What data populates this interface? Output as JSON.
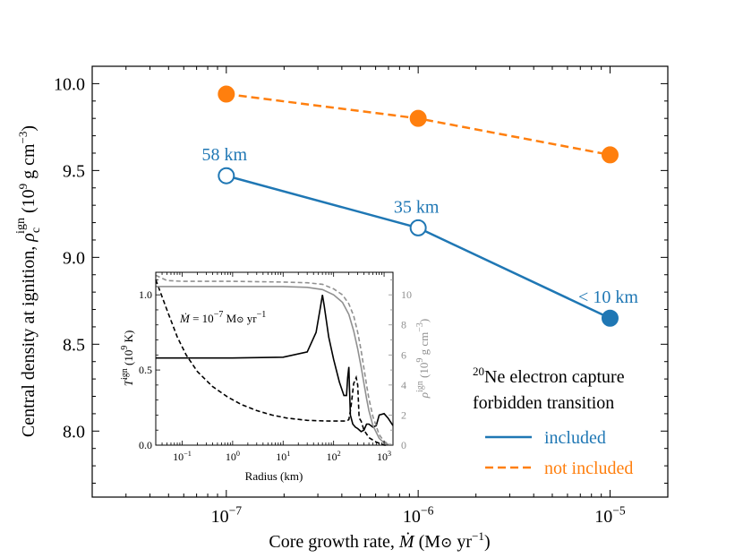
{
  "chart_data": [
    {
      "type": "line",
      "xscale": "log",
      "xlim": [
        2e-08,
        2e-05
      ],
      "ylim": [
        7.62,
        10.1
      ],
      "xticks": [
        {
          "value": 1e-07,
          "base": "10",
          "exp": "-7"
        },
        {
          "value": 1e-06,
          "base": "10",
          "exp": "-6"
        },
        {
          "value": 1e-05,
          "base": "10",
          "exp": "-5"
        }
      ],
      "yticks": [
        {
          "value": 8.0,
          "label": "8.0"
        },
        {
          "value": 8.5,
          "label": "8.5"
        },
        {
          "value": 9.0,
          "label": "9.0"
        },
        {
          "value": 9.5,
          "label": "9.5"
        },
        {
          "value": 10.0,
          "label": "10.0"
        }
      ],
      "xlabel": "Core growth rate, Ṁ (M⊙ yr⁻¹)",
      "ylabel": "Central density at ignition, ρcign (10⁹ g cm⁻³)",
      "series": [
        {
          "name": "included",
          "color": "#1f77b4",
          "dash": "solid",
          "x": [
            1e-07,
            1e-06,
            1e-05
          ],
          "y": [
            9.47,
            9.17,
            8.65
          ],
          "filled": [
            false,
            false,
            true
          ],
          "labels": [
            "58 km",
            "35 km",
            "< 10 km"
          ]
        },
        {
          "name": "not included",
          "color": "#ff7f0e",
          "dash": "dashed",
          "x": [
            1e-07,
            1e-06,
            1e-05
          ],
          "y": [
            9.94,
            9.8,
            9.59
          ],
          "filled": [
            true,
            true,
            true
          ],
          "labels": []
        }
      ],
      "legend": {
        "title_line1": "Ne electron capture",
        "title_sup": "20",
        "title_line2": "forbidden transition",
        "entries": [
          "included",
          "not included"
        ],
        "placement": "lower-right"
      }
    },
    {
      "type": "line",
      "panel": "inset",
      "xscale": "log",
      "xlim": [
        0.03,
        1500
      ],
      "ylim_left": [
        0,
        1.15
      ],
      "ylim_right": [
        0,
        11.5
      ],
      "xticks": [
        {
          "value": 0.1,
          "base": "10",
          "exp": "-1"
        },
        {
          "value": 1,
          "base": "10",
          "exp": "0"
        },
        {
          "value": 10,
          "base": "10",
          "exp": "1"
        },
        {
          "value": 100,
          "base": "10",
          "exp": "2"
        },
        {
          "value": 1000,
          "base": "10",
          "exp": "3"
        }
      ],
      "yticks_left": [
        {
          "value": 0.0,
          "label": "0.0"
        },
        {
          "value": 0.5,
          "label": "0.5"
        },
        {
          "value": 1.0,
          "label": "1.0"
        }
      ],
      "yticks_right": [
        {
          "value": 0,
          "label": "0"
        },
        {
          "value": 2,
          "label": "2"
        },
        {
          "value": 4,
          "label": "4"
        },
        {
          "value": 6,
          "label": "6"
        },
        {
          "value": 8,
          "label": "8"
        },
        {
          "value": 10,
          "label": "10"
        }
      ],
      "xlabel": "Radius (km)",
      "ylabel_left": "Tign (10⁹ K)",
      "ylabel_right": "ρign (10⁹ g cm⁻³)",
      "annotation": "Ṁ = 10⁻⁷ M⊙ yr⁻¹",
      "series": [
        {
          "name": "temperature, forbidden transition included",
          "axis": "left",
          "color": "#000000",
          "dash": "solid",
          "x": [
            0.03,
            1,
            10,
            30,
            45,
            55,
            60,
            65,
            80,
            100,
            130,
            160,
            180,
            190,
            200,
            205,
            215,
            240,
            270,
            300,
            350,
            400,
            450,
            500,
            600,
            700,
            800,
            1000,
            1200,
            1500
          ],
          "y": [
            0.58,
            0.58,
            0.585,
            0.62,
            0.75,
            0.92,
            1.0,
            0.93,
            0.72,
            0.57,
            0.42,
            0.33,
            0.33,
            0.45,
            0.52,
            0.4,
            0.2,
            0.14,
            0.12,
            0.11,
            0.09,
            0.1,
            0.14,
            0.14,
            0.12,
            0.13,
            0.2,
            0.21,
            0.18,
            0.13
          ]
        },
        {
          "name": "temperature, forbidden transition not included",
          "axis": "left",
          "color": "#000000",
          "dash": "dashed",
          "x": [
            0.03,
            0.05,
            0.08,
            0.12,
            0.2,
            0.4,
            0.8,
            1.5,
            3,
            6,
            12,
            30,
            80,
            150,
            180,
            200,
            220,
            250,
            280,
            300,
            320,
            350,
            400,
            500,
            700,
            1000,
            1500
          ],
          "y": [
            1.1,
            0.9,
            0.72,
            0.6,
            0.49,
            0.39,
            0.32,
            0.27,
            0.23,
            0.2,
            0.18,
            0.165,
            0.16,
            0.16,
            0.16,
            0.17,
            0.25,
            0.41,
            0.45,
            0.4,
            0.18,
            0.16,
            0.1,
            0.05,
            0.02,
            0.0,
            0.0
          ]
        },
        {
          "name": "density, forbidden transition included",
          "axis": "right",
          "color": "#909090",
          "dash": "solid",
          "x": [
            0.03,
            1,
            10,
            30,
            60,
            100,
            150,
            200,
            250,
            300,
            350,
            400,
            450,
            500,
            600,
            800,
            1000,
            1200,
            1500
          ],
          "y": [
            10.55,
            10.55,
            10.55,
            10.5,
            10.35,
            10.0,
            9.5,
            8.7,
            7.6,
            6.4,
            5.2,
            4.1,
            3.1,
            2.3,
            1.3,
            0.45,
            0.15,
            0.05,
            0.0
          ]
        },
        {
          "name": "density, forbidden transition not included",
          "axis": "right",
          "color": "#909090",
          "dash": "dashed",
          "x": [
            0.03,
            0.05,
            0.1,
            1,
            10,
            30,
            60,
            100,
            150,
            200,
            250,
            300,
            350,
            400,
            450,
            500,
            600,
            800,
            1000,
            1200,
            1500
          ],
          "y": [
            11.3,
            10.95,
            10.9,
            10.9,
            10.85,
            10.8,
            10.7,
            10.4,
            10.0,
            9.4,
            8.6,
            7.5,
            6.3,
            5.1,
            4.0,
            3.1,
            1.9,
            0.7,
            0.25,
            0.08,
            0.0
          ]
        }
      ]
    }
  ]
}
